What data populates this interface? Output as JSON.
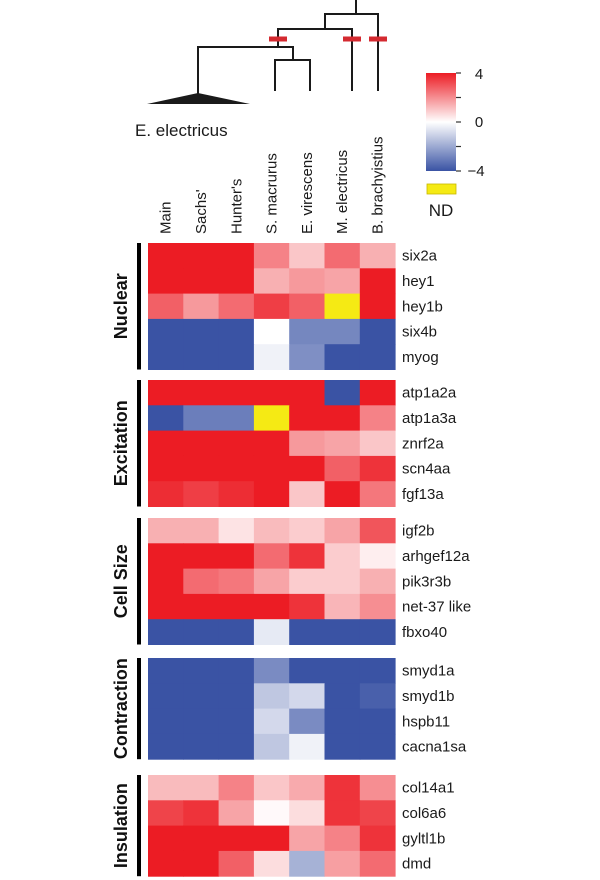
{
  "chart_data": {
    "type": "heatmap",
    "title": "",
    "columns": [
      "Main",
      "Sachs'",
      "Hunter's",
      "S. macrurus",
      "E. virescens",
      "M. electricus",
      "B. brachyistius"
    ],
    "clade_label": "E. electricus",
    "color_scale": {
      "min": -4,
      "mid": 0,
      "max": 4,
      "min_color": "#3a53a4",
      "mid_color": "#ffffff",
      "max_color": "#ec1c24",
      "tick_labels": [
        "4",
        "0",
        "−4"
      ],
      "nd_color": "#f5ea14",
      "nd_label": "ND",
      "legend_position": "top-right"
    },
    "groups": [
      {
        "name": "Nuclear",
        "rows": [
          {
            "gene": "six2a",
            "values": [
              4,
              4,
              4,
              2.2,
              1.0,
              2.6,
              1.4
            ]
          },
          {
            "gene": "hey1",
            "values": [
              4,
              4,
              4,
              1.4,
              1.8,
              1.6,
              4
            ]
          },
          {
            "gene": "hey1b",
            "values": [
              2.8,
              1.8,
              2.6,
              3.4,
              2.8,
              null,
              4
            ]
          },
          {
            "gene": "six4b",
            "values": [
              -4,
              -4,
              -4,
              0,
              -2.8,
              -2.8,
              -4
            ]
          },
          {
            "gene": "myog",
            "values": [
              -4,
              -4,
              -4,
              -0.3,
              -2.6,
              -4,
              -4
            ]
          }
        ]
      },
      {
        "name": "Excitation",
        "rows": [
          {
            "gene": "atp1a2a",
            "values": [
              4,
              4,
              4,
              4,
              4,
              -4,
              4
            ]
          },
          {
            "gene": "atp1a3a",
            "values": [
              -4,
              -3,
              -3,
              null,
              4,
              4,
              2.2
            ]
          },
          {
            "gene": "znrf2a",
            "values": [
              4,
              4,
              4,
              4,
              1.8,
              1.6,
              1.0
            ]
          },
          {
            "gene": "scn4aa",
            "values": [
              4,
              4,
              4,
              4,
              4,
              2.8,
              3.6
            ]
          },
          {
            "gene": "fgf13a",
            "values": [
              3.7,
              3.4,
              3.7,
              4,
              1.0,
              4,
              2.4
            ]
          }
        ]
      },
      {
        "name": "Cell Size",
        "rows": [
          {
            "gene": "igf2b",
            "values": [
              1.4,
              1.4,
              0.5,
              1.2,
              0.9,
              1.6,
              3.0
            ]
          },
          {
            "gene": "arhgef12a",
            "values": [
              4,
              4,
              4,
              2.6,
              3.6,
              0.9,
              0.3
            ]
          },
          {
            "gene": "pik3r3b",
            "values": [
              4,
              2.6,
              2.4,
              1.6,
              0.9,
              0.9,
              1.4
            ]
          },
          {
            "gene": "net-37 like",
            "values": [
              4,
              4,
              4,
              4,
              3.6,
              1.3,
              2.0
            ]
          },
          {
            "gene": "fbxo40",
            "values": [
              -4,
              -4,
              -4,
              -0.5,
              -4,
              -4,
              -4
            ]
          }
        ]
      },
      {
        "name": "Contraction",
        "rows": [
          {
            "gene": "smyd1a",
            "values": [
              -4,
              -4,
              -4,
              -2.7,
              -4,
              -4,
              -4
            ]
          },
          {
            "gene": "smyd1b",
            "values": [
              -4,
              -4,
              -4,
              -1.3,
              -0.9,
              -4,
              -3.7
            ]
          },
          {
            "gene": "hspb11",
            "values": [
              -4,
              -4,
              -4,
              -0.9,
              -2.7,
              -4,
              -4
            ]
          },
          {
            "gene": "cacna1sa",
            "values": [
              -4,
              -4,
              -4,
              -1.3,
              -0.3,
              -4,
              -4
            ]
          }
        ]
      },
      {
        "name": "Insulation",
        "rows": [
          {
            "gene": "col14a1",
            "values": [
              1.2,
              1.2,
              2.2,
              1.0,
              1.5,
              3.6,
              2.0
            ]
          },
          {
            "gene": "col6a6",
            "values": [
              3.3,
              3.6,
              1.6,
              0.1,
              0.6,
              3.6,
              3.3
            ]
          },
          {
            "gene": "gyltl1b",
            "values": [
              4,
              4,
              4,
              4,
              1.6,
              2.2,
              3.6
            ]
          },
          {
            "gene": "dmd",
            "values": [
              4,
              4,
              2.8,
              0.6,
              -1.8,
              1.7,
              2.6
            ]
          }
        ]
      }
    ],
    "tree": {
      "marker_color": "#d42a30",
      "marked_branches": [
        "E. electricus + S. macrurus + E. virescens",
        "M. electricus",
        "B. brachyistius"
      ]
    }
  }
}
